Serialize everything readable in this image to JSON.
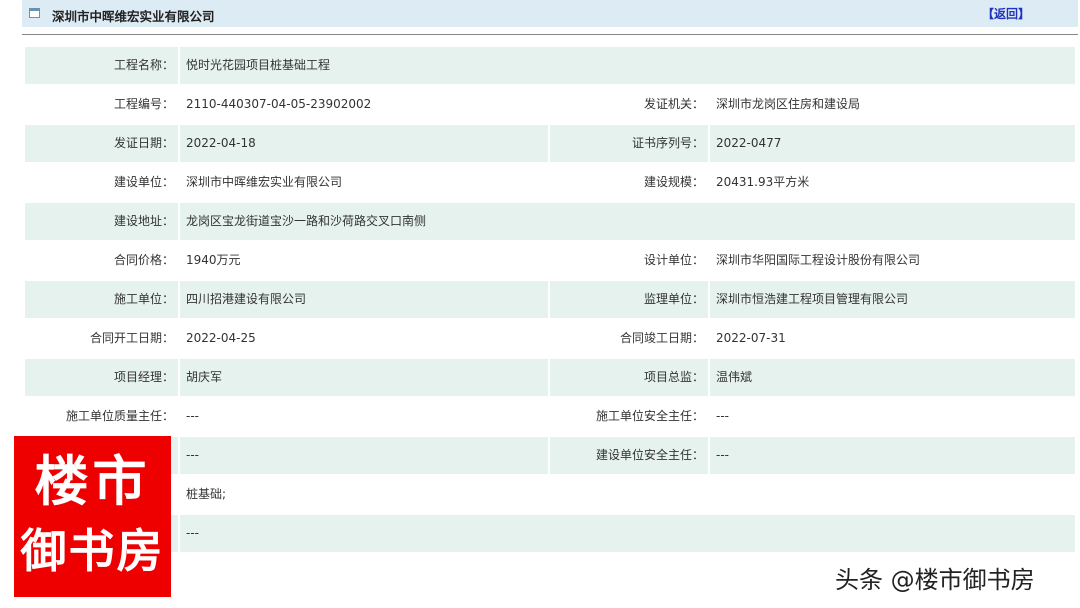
{
  "header": {
    "title": "深圳市中晖维宏实业有限公司",
    "back_label": "【返回】",
    "icon": "window-icon"
  },
  "rows": [
    {
      "l1": "工程名称：",
      "v1": "悦时光花园项目桩基础工程"
    },
    {
      "l1": "工程编号：",
      "v1": "2110-440307-04-05-23902002",
      "l2": "发证机关：",
      "v2": "深圳市龙岗区住房和建设局"
    },
    {
      "l1": "发证日期：",
      "v1": "2022-04-18",
      "l2": "证书序列号：",
      "v2": "2022-0477"
    },
    {
      "l1": "建设单位：",
      "v1": "深圳市中晖维宏实业有限公司",
      "l2": "建设规模：",
      "v2": "20431.93平方米"
    },
    {
      "l1": "建设地址：",
      "v1": "龙岗区宝龙街道宝沙一路和沙荷路交叉口南侧"
    },
    {
      "l1": "合同价格：",
      "v1": "1940万元",
      "l2": "设计单位：",
      "v2": "深圳市华阳国际工程设计股份有限公司"
    },
    {
      "l1": "施工单位：",
      "v1": "四川招港建设有限公司",
      "l2": "监理单位：",
      "v2": "深圳市恒浩建工程项目管理有限公司"
    },
    {
      "l1": "合同开工日期：",
      "v1": "2022-04-25",
      "l2": "合同竣工日期：",
      "v2": "2022-07-31"
    },
    {
      "l1": "项目经理：",
      "v1": "胡庆军",
      "l2": "项目总监：",
      "v2": "温伟斌"
    },
    {
      "l1": "施工单位质量主任：",
      "v1": "---",
      "l2": "施工单位安全主任：",
      "v2": "---"
    },
    {
      "l1": "",
      "v1": "---",
      "l2": "建设单位安全主任：",
      "v2": "---"
    },
    {
      "l1": "",
      "v1": "桩基础;"
    },
    {
      "l1": "",
      "v1": "---"
    }
  ],
  "overlay": {
    "logo_line1": "楼市",
    "logo_line2": "御书房",
    "watermark": "头条 @楼市御书房",
    "logo_color": "#ee0000"
  }
}
